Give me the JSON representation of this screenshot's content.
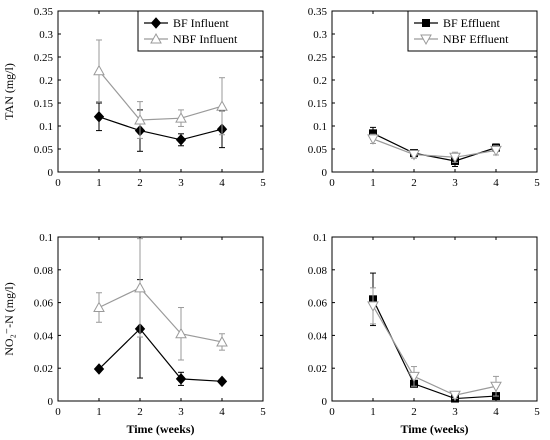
{
  "chart_data": [
    {
      "type": "line",
      "x": [
        1,
        2,
        3,
        4
      ],
      "xlim": [
        0,
        5
      ],
      "xticks": [
        "0",
        "1",
        "2",
        "3",
        "4",
        "5"
      ],
      "ylim": [
        0,
        0.35
      ],
      "yticks": [
        "0",
        "0.05",
        "0.1",
        "0.15",
        "0.2",
        "0.25",
        "0.3",
        "0.35"
      ],
      "xlabel": "",
      "ylabel": "TAN (mg/l)",
      "legend": "top-right",
      "series": [
        {
          "name": "BF Influent",
          "marker": "diamond-filled",
          "color": "#000000",
          "values": [
            0.12,
            0.09,
            0.07,
            0.093
          ],
          "errors": [
            0.03,
            0.045,
            0.013,
            0.04
          ]
        },
        {
          "name": "NBF Influent",
          "marker": "triangle-open",
          "color": "#9a9a9a",
          "values": [
            0.22,
            0.113,
            0.117,
            0.143
          ],
          "errors": [
            0.067,
            0.04,
            0.018,
            0.062
          ]
        }
      ]
    },
    {
      "type": "line",
      "x": [
        1,
        2,
        3,
        4
      ],
      "xlim": [
        0,
        5
      ],
      "xticks": [
        "0",
        "1",
        "2",
        "3",
        "4",
        "5"
      ],
      "ylim": [
        0,
        0.35
      ],
      "yticks": [
        "0",
        "0.05",
        "0.1",
        "0.15",
        "0.2",
        "0.25",
        "0.3",
        "0.35"
      ],
      "xlabel": "",
      "ylabel": "",
      "legend": "top-right",
      "series": [
        {
          "name": "BF Effluent",
          "marker": "square-filled",
          "color": "#000000",
          "values": [
            0.084,
            0.041,
            0.024,
            0.053
          ],
          "errors": [
            0.013,
            0.007,
            0.012,
            0.008
          ]
        },
        {
          "name": "NBF Effluent",
          "marker": "triangle-down-open",
          "color": "#9a9a9a",
          "values": [
            0.072,
            0.038,
            0.032,
            0.047
          ],
          "errors": [
            0.01,
            0.008,
            0.011,
            0.01
          ]
        }
      ]
    },
    {
      "type": "line",
      "x": [
        1,
        2,
        3,
        4
      ],
      "xlim": [
        0,
        5
      ],
      "xticks": [
        "0",
        "1",
        "2",
        "3",
        "4",
        "5"
      ],
      "ylim": [
        0,
        0.1
      ],
      "yticks": [
        "0",
        "0.02",
        "0.04",
        "0.06",
        "0.08",
        "0.1"
      ],
      "xlabel": "Time (weeks)",
      "ylabel": "NO₂⁻-N (mg/l)",
      "legend": "none",
      "series": [
        {
          "name": "",
          "marker": "diamond-filled",
          "color": "#000000",
          "values": [
            0.0195,
            0.044,
            0.0135,
            0.012
          ],
          "errors": [
            0.0,
            0.03,
            0.004,
            0.0
          ]
        },
        {
          "name": "",
          "marker": "triangle-open",
          "color": "#9a9a9a",
          "values": [
            0.057,
            0.069,
            0.041,
            0.036
          ],
          "errors": [
            0.009,
            0.03,
            0.016,
            0.005
          ]
        }
      ]
    },
    {
      "type": "line",
      "x": [
        1,
        2,
        3,
        4
      ],
      "xlim": [
        0,
        5
      ],
      "xticks": [
        "0",
        "1",
        "2",
        "3",
        "4",
        "5"
      ],
      "ylim": [
        0,
        0.1
      ],
      "yticks": [
        "0",
        "0.02",
        "0.04",
        "0.06",
        "0.08",
        "0.1"
      ],
      "xlabel": "Time (weeks)",
      "ylabel": "",
      "legend": "none",
      "series": [
        {
          "name": "",
          "marker": "square-filled",
          "color": "#000000",
          "values": [
            0.062,
            0.0105,
            0.0015,
            0.003
          ],
          "errors": [
            0.016,
            0.0,
            0.0,
            0.0
          ]
        },
        {
          "name": "",
          "marker": "triangle-down-open",
          "color": "#9a9a9a",
          "values": [
            0.058,
            0.015,
            0.0035,
            0.009
          ],
          "errors": [
            0.011,
            0.006,
            0.002,
            0.006
          ]
        }
      ]
    }
  ]
}
